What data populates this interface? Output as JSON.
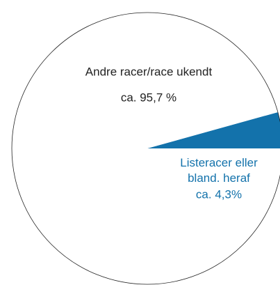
{
  "chart_data": {
    "type": "pie",
    "categories": [
      "Andre racer/race ukendt",
      "Listeracer eller bland. heraf"
    ],
    "values": [
      95.7,
      4.3
    ],
    "value_labels": [
      "ca. 95,7 %",
      "ca. 4,3%"
    ],
    "colors": [
      "#ffffff",
      "#1372ab"
    ],
    "label_colors": [
      "#222222",
      "#1372ab"
    ]
  }
}
